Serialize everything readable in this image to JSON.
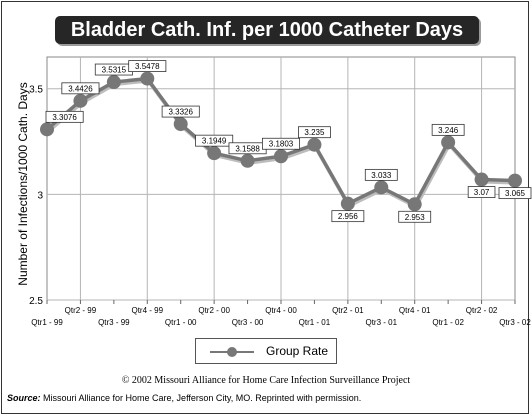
{
  "title": "Bladder Cath. Inf. per 1000 Catheter Days",
  "copyright": "© 2002 Missouri Alliance for Home Care Infection Surveillance Project",
  "source_label": "Source:",
  "source_text": " Missouri Alliance for Home Care, Jefferson City, MO. Reprinted with permission.",
  "chart_data": {
    "type": "line",
    "title": "Bladder Cath. Inf. per 1000 Catheter Days",
    "ylabel": "Number of Infections/1000 Cath. Days",
    "xlabel": "",
    "categories": [
      "Qtr1 - 99",
      "Qtr2 - 99",
      "Qtr3 - 99",
      "Qtr4 - 99",
      "Qtr1 - 00",
      "Qtr2 - 00",
      "Qtr3 - 00",
      "Qtr4 - 00",
      "Qtr1 - 01",
      "Qtr2 - 01",
      "Qtr3 - 01",
      "Qtr4 - 01",
      "Qtr1 - 02",
      "Qtr2 - 02",
      "Qtr3 - 02"
    ],
    "series": [
      {
        "name": "Group Rate",
        "values": [
          3.3076,
          3.4426,
          3.5315,
          3.5478,
          3.3326,
          3.1949,
          3.1588,
          3.1803,
          3.235,
          2.956,
          3.033,
          2.953,
          3.246,
          3.07,
          3.065
        ],
        "labels": [
          "3.3076",
          "3.4426",
          "3.5315",
          "3.5478",
          "3.3326",
          "3.1949",
          "3.1588",
          "3.1803",
          "3.235",
          "2.956",
          "3.033",
          "2.953",
          "3.246",
          "3.07",
          "3.065"
        ]
      }
    ],
    "ylim": [
      2.5,
      3.65
    ],
    "yticks": [
      2.5,
      3,
      3.5
    ],
    "ytick_labels": [
      "2.5",
      "3",
      "3.5"
    ],
    "grid": true,
    "legend": "bottom",
    "line_color": "#777777"
  }
}
